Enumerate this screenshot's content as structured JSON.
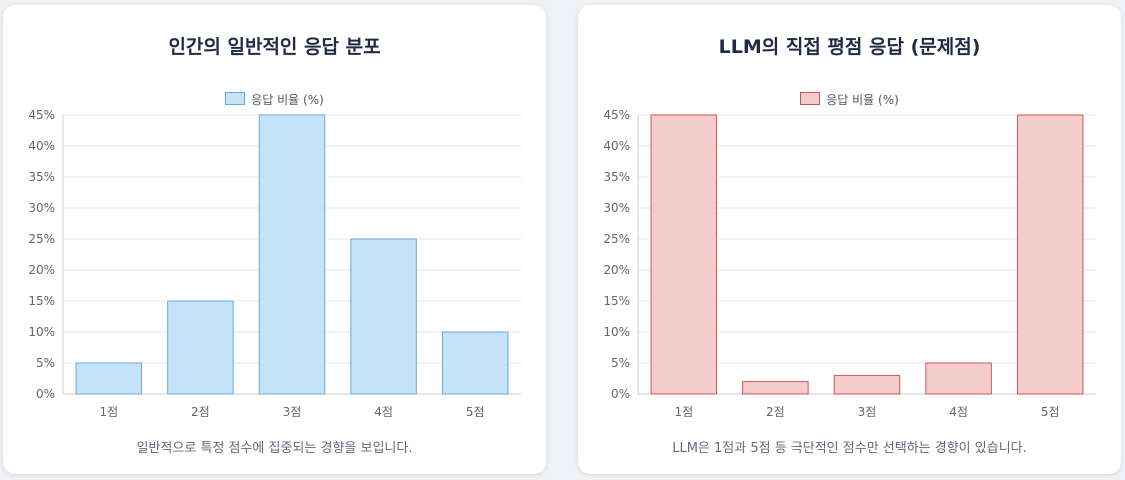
{
  "chart_data": [
    {
      "type": "bar",
      "title": "인간의 일반적인 응답 분포",
      "legend_label": "응답 비율 (%)",
      "categories": [
        "1점",
        "2점",
        "3점",
        "4점",
        "5점"
      ],
      "values": [
        5,
        15,
        45,
        25,
        10
      ],
      "y_ticks": [
        "0%",
        "5%",
        "10%",
        "15%",
        "20%",
        "25%",
        "30%",
        "35%",
        "40%",
        "45%"
      ],
      "ylim": [
        0,
        45
      ],
      "grid": true,
      "legend_position": "top",
      "bar_fill": "#c6e4f9",
      "bar_stroke": "#6ba9d6",
      "caption": "일반적으로 특정 점수에 집중되는 경향을 보입니다."
    },
    {
      "type": "bar",
      "title": "LLM의 직접 평점 응답 (문제점)",
      "legend_label": "응답 비율 (%)",
      "categories": [
        "1점",
        "2점",
        "3점",
        "4점",
        "5점"
      ],
      "values": [
        45,
        2,
        3,
        5,
        45
      ],
      "y_ticks": [
        "0%",
        "5%",
        "10%",
        "15%",
        "20%",
        "25%",
        "30%",
        "35%",
        "40%",
        "45%"
      ],
      "ylim": [
        0,
        45
      ],
      "grid": true,
      "legend_position": "top",
      "bar_fill": "#f5cccc",
      "bar_stroke": "#cc5555",
      "caption": "LLM은 1점과 5점 등 극단적인 점수만 선택하는 경향이 있습니다."
    }
  ]
}
